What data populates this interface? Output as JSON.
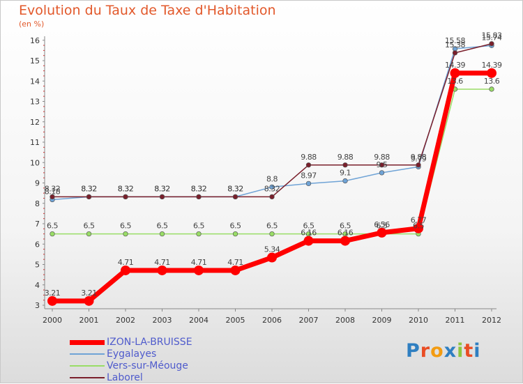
{
  "title": "Evolution du Taux de Taxe d'Habitation",
  "unit_label": "(en %)",
  "logo": {
    "text": "Proxiti",
    "letter_colors": [
      "#2f7fc1",
      "#e94d24",
      "#f39c12",
      "#2f7fc1",
      "#8dc63f",
      "#e94d24",
      "#2f7fc1"
    ]
  },
  "chart_data": {
    "type": "line",
    "x": [
      "2000",
      "2001",
      "2002",
      "2003",
      "2004",
      "2005",
      "2006",
      "2007",
      "2008",
      "2009",
      "2010",
      "2011",
      "2012"
    ],
    "ylim": [
      3,
      16
    ],
    "yticks": [
      "3",
      "4",
      "5",
      "6",
      "7",
      "8",
      "9",
      "10",
      "11",
      "12",
      "13",
      "14",
      "15",
      "16"
    ],
    "grid": false,
    "legend_position": "bottom-left",
    "series": [
      {
        "name": "IZON-LA-BRUISSE",
        "color": "#ff0000",
        "values": [
          3.21,
          3.21,
          4.71,
          4.71,
          4.71,
          4.71,
          5.34,
          6.16,
          6.16,
          6.56,
          6.77,
          14.39,
          14.39
        ],
        "labels": [
          "3.21",
          "3.21",
          "4.71",
          "4.71",
          "4.71",
          "4.71",
          "5.34",
          "6.16",
          "6.16",
          "6.56",
          "6.77",
          "14.39",
          "14.39"
        ]
      },
      {
        "name": "Eygalayes",
        "color": "#6fa3d6",
        "values": [
          8.18,
          8.32,
          8.32,
          8.32,
          8.32,
          8.32,
          8.8,
          8.97,
          9.1,
          9.5,
          9.79,
          15.58,
          15.74
        ],
        "labels": [
          "8.18",
          "8.32",
          "8.32",
          "8.32",
          "8.32",
          "8.32",
          "8.8",
          "8.97",
          "9.1",
          "9.5",
          "9.79",
          "15.58",
          "15.74"
        ]
      },
      {
        "name": "Vers-sur-Méouge",
        "color": "#99dd66",
        "values": [
          6.5,
          6.5,
          6.5,
          6.5,
          6.5,
          6.5,
          6.5,
          6.5,
          6.5,
          6.5,
          6.5,
          13.6,
          13.6
        ],
        "labels": [
          "6.5",
          "6.5",
          "6.5",
          "6.5",
          "6.5",
          "6.5",
          "6.5",
          "6.5",
          "6.5",
          "6.5",
          "6.5",
          "13.6",
          "13.6"
        ]
      },
      {
        "name": "Laborel",
        "color": "#7a1f2b",
        "values": [
          8.32,
          8.32,
          8.32,
          8.32,
          8.32,
          8.32,
          8.32,
          9.88,
          9.88,
          9.88,
          9.88,
          15.38,
          15.83
        ],
        "labels": [
          "8.32",
          "8.32",
          "8.32",
          "8.32",
          "8.32",
          "8.32",
          "8.32",
          "9.88",
          "9.88",
          "9.88",
          "9.88",
          "15.38",
          "15.83"
        ]
      }
    ]
  }
}
